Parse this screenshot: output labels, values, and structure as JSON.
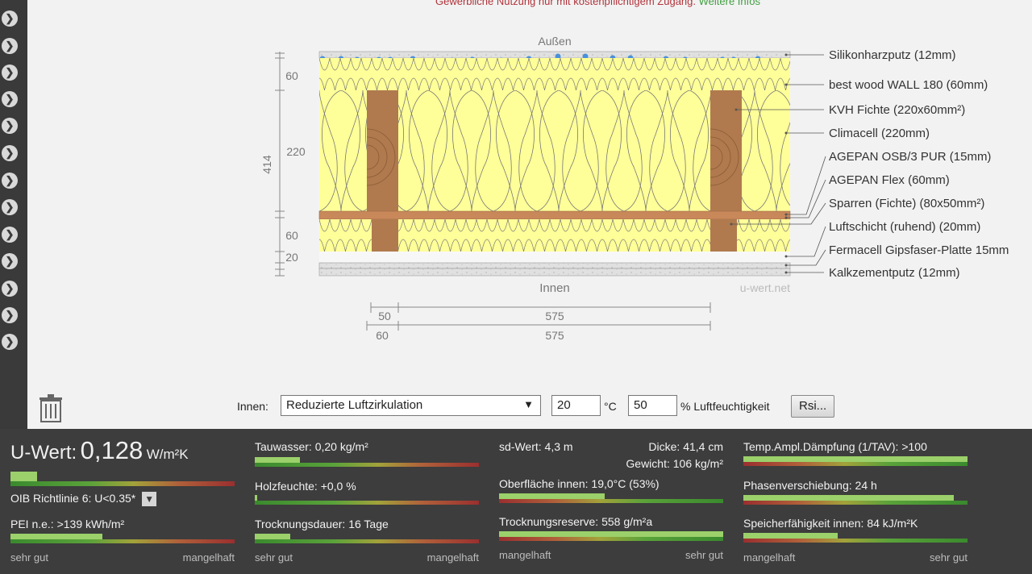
{
  "notice": {
    "text": "Gewerbliche Nutzung nur mit kostenpflichtigem Zugang.",
    "link": "Weitere Infos"
  },
  "diagram": {
    "outside": "Außen",
    "inside": "Innen",
    "watermark": "u-wert.net",
    "dims": {
      "left_total": "414",
      "l60a": "60",
      "l220": "220",
      "l60b": "60",
      "l20": "20"
    },
    "bottom_dims": {
      "a1": "50",
      "a2": "575",
      "b1": "60",
      "b2": "575"
    },
    "layers": [
      "Silikonharzputz (12mm)",
      "best wood WALL 180 (60mm)",
      "KVH Fichte (220x60mm²)",
      "Climacell (220mm)",
      "AGEPAN OSB/3 PUR (15mm)",
      "AGEPAN Flex (60mm)",
      "Sparren (Fichte) (80x50mm²)",
      "Luftschicht (ruhend) (20mm)",
      "Fermacell Gipsfaser-Platte 15mm",
      "Kalkzementputz (12mm)"
    ]
  },
  "controls": {
    "inside_label": "Innen:",
    "airflow": "Reduzierte Luftzirkulation",
    "temp": "20",
    "temp_unit": "°C",
    "humidity": "50",
    "humidity_unit": "% Luftfeuchtigkeit",
    "rsi_button": "Rsi..."
  },
  "results": {
    "uwert_label": "U-Wert:",
    "uwert_value": "0,128",
    "uwert_unit": "W/m²K",
    "oib": "OIB Richtlinie 6: U<0.35*",
    "pei": "PEI n.e.: >139 kWh/m²",
    "tauwasser": "Tauwasser: 0,20 kg/m²",
    "holzfeuchte": "Holzfeuchte: +0,0 %",
    "trocknungsdauer": "Trocknungsdauer: 16 Tage",
    "sd": "sd-Wert: 4,3 m",
    "dicke": "Dicke: 41,4 cm",
    "gewicht": "Gewicht: 106 kg/m²",
    "oberflaeche": "Oberfläche innen: 19,0°C (53%)",
    "trocknungsreserve": "Trocknungsreserve: 558 g/m²a",
    "tav": "Temp.Ampl.Dämpfung (1/TAV): >100",
    "phase": "Phasenverschiebung: 24 h",
    "speicher": "Speicherfähigkeit innen: 84 kJ/m²K",
    "good": "sehr gut",
    "bad": "mangelhaft",
    "levels": {
      "uwert": 0.12,
      "pei": 0.41,
      "tauwasser": 0.2,
      "holzfeuchte": 0.01,
      "trocknungsdauer": 0.16,
      "oberflaeche": 0.47,
      "trocknungsreserve": 1.0,
      "tav": 1.0,
      "phase": 0.94,
      "speicher": 0.42
    }
  },
  "colors": {
    "insulation": "#ffff99",
    "wood": "#b07a4e",
    "osb": "#c8885a",
    "panel": "#3d3d3d",
    "good": "#9bd06a",
    "bad": "#c0392b"
  }
}
